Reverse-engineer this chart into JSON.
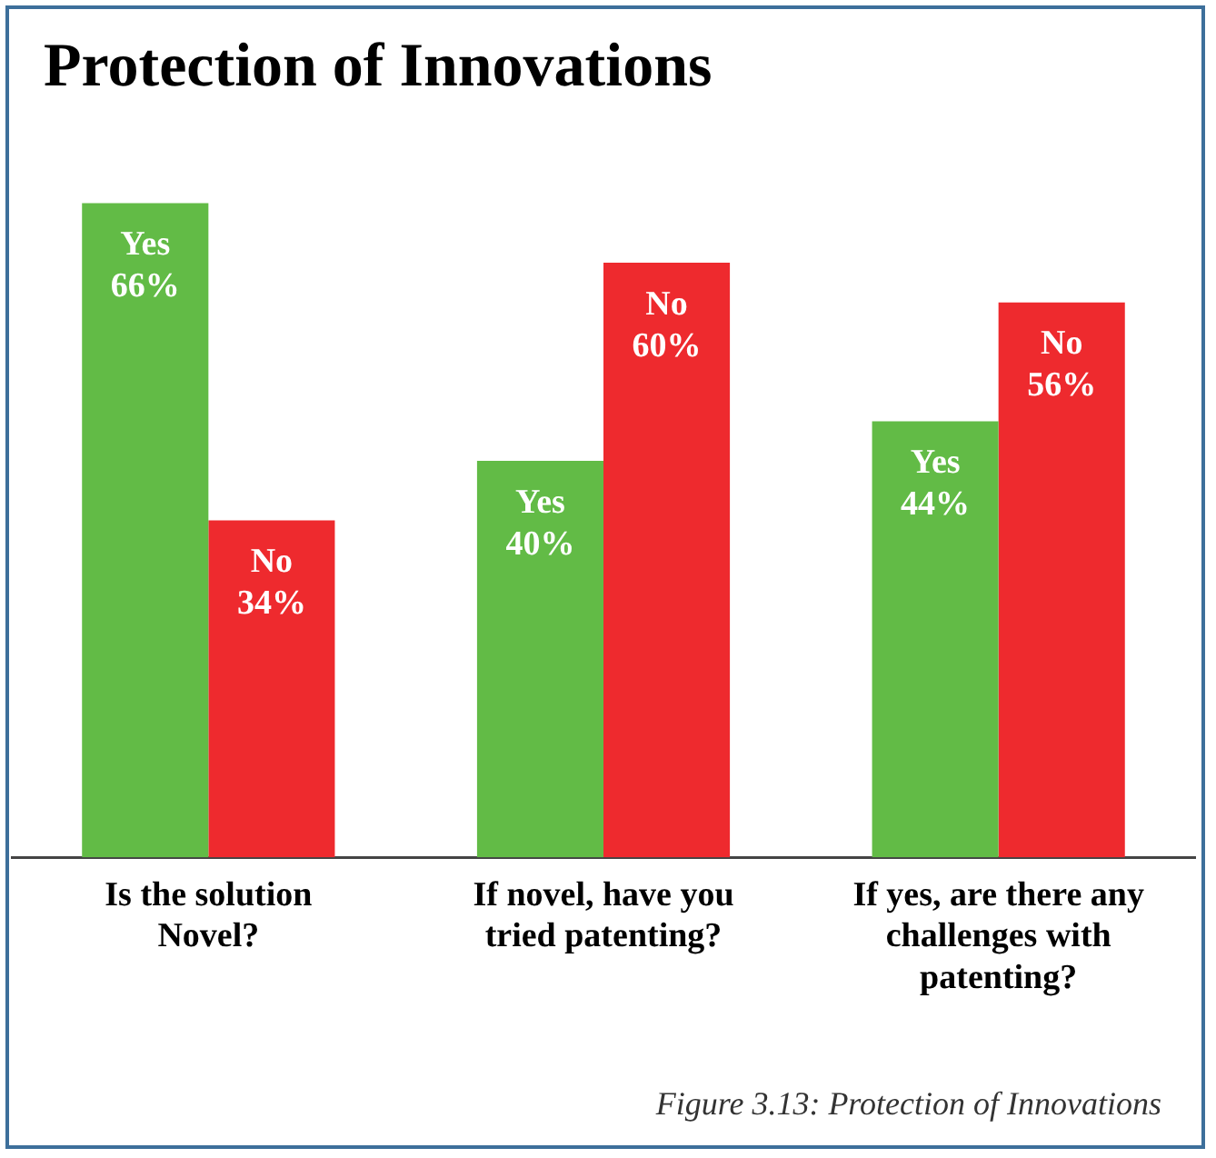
{
  "chart_data": {
    "type": "bar",
    "title": "Protection of Innovations",
    "categories": [
      "Is the solution Novel?",
      "If novel, have you tried patenting?",
      "If yes, are there any challenges with patenting?"
    ],
    "series": [
      {
        "name": "Yes",
        "color": "#62bb46",
        "values": [
          66,
          40,
          44
        ],
        "value_labels": [
          "66%",
          "40%",
          "44%"
        ]
      },
      {
        "name": "No",
        "color": "#ee2a2e",
        "values": [
          34,
          60,
          56
        ],
        "value_labels": [
          "34%",
          "60%",
          "56%"
        ]
      }
    ],
    "annotations": [
      "Figure 3.13: Protection of Innovations"
    ]
  }
}
